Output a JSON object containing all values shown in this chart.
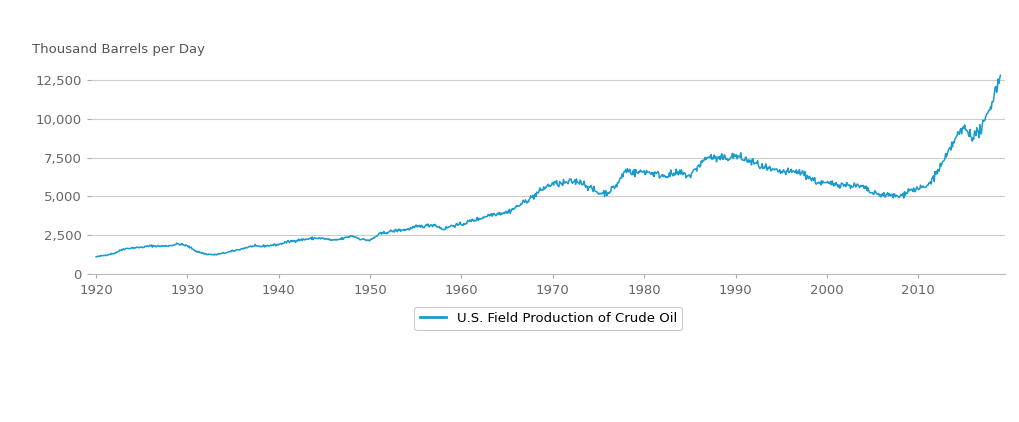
{
  "title": "Thousand Barrels per Day",
  "legend_label": "U.S. Field Production of Crude Oil",
  "line_color": "#1a9bcd",
  "background_color": "#ffffff",
  "grid_color": "#cccccc",
  "ylim": [
    0,
    13500
  ],
  "yticks": [
    0,
    2500,
    5000,
    7500,
    10000,
    12500
  ],
  "xlim": [
    1919.5,
    2019.5
  ],
  "xticks": [
    1920,
    1930,
    1940,
    1950,
    1960,
    1970,
    1980,
    1990,
    2000,
    2010
  ],
  "series": {
    "years": [
      1920,
      1921,
      1922,
      1923,
      1924,
      1925,
      1926,
      1927,
      1928,
      1929,
      1930,
      1931,
      1932,
      1933,
      1934,
      1935,
      1936,
      1937,
      1938,
      1939,
      1940,
      1941,
      1942,
      1943,
      1944,
      1945,
      1946,
      1947,
      1948,
      1949,
      1950,
      1951,
      1952,
      1953,
      1954,
      1955,
      1956,
      1957,
      1958,
      1959,
      1960,
      1961,
      1962,
      1963,
      1964,
      1965,
      1966,
      1967,
      1968,
      1969,
      1970,
      1971,
      1972,
      1973,
      1974,
      1975,
      1976,
      1977,
      1978,
      1979,
      1980,
      1981,
      1982,
      1983,
      1984,
      1985,
      1986,
      1987,
      1988,
      1989,
      1990,
      1991,
      1992,
      1993,
      1994,
      1995,
      1996,
      1997,
      1998,
      1999,
      2000,
      2001,
      2002,
      2003,
      2004,
      2005,
      2006,
      2007,
      2008,
      2009,
      2010,
      2011,
      2012,
      2013,
      2014,
      2015,
      2016,
      2017,
      2018,
      2019
    ],
    "values": [
      1097,
      1207,
      1330,
      1610,
      1680,
      1714,
      1810,
      1786,
      1810,
      1940,
      1804,
      1454,
      1280,
      1230,
      1344,
      1470,
      1622,
      1780,
      1770,
      1830,
      1900,
      2070,
      2170,
      2234,
      2310,
      2268,
      2156,
      2268,
      2457,
      2240,
      2153,
      2555,
      2710,
      2805,
      2860,
      3024,
      3095,
      3175,
      2875,
      3120,
      3172,
      3416,
      3556,
      3794,
      3900,
      3970,
      4300,
      4670,
      5050,
      5525,
      5820,
      5800,
      5940,
      5960,
      5580,
      5200,
      5240,
      5730,
      6700,
      6510,
      6610,
      6480,
      6340,
      6395,
      6500,
      6295,
      7000,
      7570,
      7410,
      7460,
      7610,
      7370,
      7170,
      6850,
      6660,
      6560,
      6560,
      6580,
      6250,
      5880,
      5823,
      5801,
      5746,
      5681,
      5587,
      5178,
      5102,
      5064,
      4980,
      5400,
      5471,
      5645,
      6497,
      7442,
      8652,
      9416,
      8857,
      9357,
      10964,
      12800
    ]
  }
}
